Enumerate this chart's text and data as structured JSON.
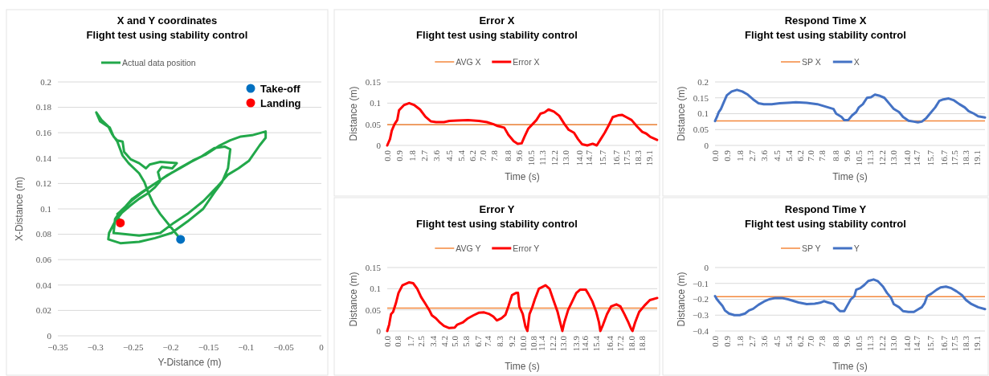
{
  "chart_data": [
    {
      "type": "line",
      "title": "X and Y coordinates",
      "subtitle": "Flight test using stability control",
      "xlabel": "Y-Distance (m)",
      "ylabel": "X-Distance (m)",
      "xlim": [
        -0.35,
        0
      ],
      "xticks": [
        {
          "value": -0.35,
          "label": "−0.35"
        },
        {
          "value": -0.3,
          "label": "−0.3"
        },
        {
          "value": -0.25,
          "label": "−0.25"
        },
        {
          "value": -0.2,
          "label": "−0.2"
        },
        {
          "value": -0.15,
          "label": "−0.15"
        },
        {
          "value": -0.1,
          "label": "−0.1"
        },
        {
          "value": -0.05,
          "label": "−0.05"
        },
        0
      ],
      "ylim": [
        0,
        0.2
      ],
      "yticks": [
        0,
        0.02,
        0.04,
        0.06,
        0.08,
        0.1,
        0.12,
        0.14,
        0.16,
        0.18,
        0.2
      ],
      "grid": "y",
      "legend": "top",
      "line_style": "solid",
      "series": [
        {
          "name": "Actual data position",
          "color": "#22a84a",
          "x": [
            -0.187,
            -0.199,
            -0.214,
            -0.223,
            -0.23,
            -0.235,
            -0.242,
            -0.256,
            -0.264,
            -0.271,
            -0.278,
            -0.283,
            -0.292,
            -0.299,
            -0.294,
            -0.281,
            -0.276,
            -0.271,
            -0.264,
            -0.262,
            -0.253,
            -0.242,
            -0.233,
            -0.228,
            -0.214,
            -0.192,
            -0.198,
            -0.212,
            -0.217,
            -0.214,
            -0.221,
            -0.231,
            -0.242,
            -0.253,
            -0.265,
            -0.274,
            -0.282,
            -0.283,
            -0.267,
            -0.242,
            -0.221,
            -0.199,
            -0.178,
            -0.157,
            -0.142,
            -0.132,
            -0.124,
            -0.121,
            -0.128,
            -0.142,
            -0.16,
            -0.173,
            -0.185,
            -0.206,
            -0.228,
            -0.24,
            -0.251,
            -0.26,
            -0.267,
            -0.274,
            -0.276,
            -0.26,
            -0.242,
            -0.214,
            -0.196,
            -0.178,
            -0.157,
            -0.139,
            -0.124,
            -0.11,
            -0.096,
            -0.082,
            -0.074,
            -0.074,
            -0.092,
            -0.107,
            -0.121,
            -0.135,
            -0.153,
            -0.171,
            -0.189,
            -0.208,
            -0.226,
            -0.239,
            -0.251,
            -0.26,
            -0.265,
            -0.271,
            -0.267
          ],
          "values": [
            0.076,
            0.085,
            0.096,
            0.104,
            0.113,
            0.121,
            0.128,
            0.136,
            0.142,
            0.153,
            0.159,
            0.165,
            0.17,
            0.176,
            0.169,
            0.164,
            0.157,
            0.154,
            0.153,
            0.145,
            0.139,
            0.136,
            0.132,
            0.135,
            0.137,
            0.136,
            0.132,
            0.133,
            0.129,
            0.122,
            0.117,
            0.112,
            0.108,
            0.103,
            0.097,
            0.09,
            0.081,
            0.076,
            0.073,
            0.074,
            0.077,
            0.081,
            0.09,
            0.1,
            0.113,
            0.121,
            0.132,
            0.147,
            0.149,
            0.148,
            0.141,
            0.137,
            0.133,
            0.126,
            0.117,
            0.112,
            0.107,
            0.102,
            0.098,
            0.092,
            0.081,
            0.08,
            0.079,
            0.081,
            0.089,
            0.096,
            0.106,
            0.117,
            0.127,
            0.132,
            0.138,
            0.15,
            0.156,
            0.161,
            0.158,
            0.157,
            0.154,
            0.15,
            0.143,
            0.138,
            0.132,
            0.125,
            0.118,
            0.113,
            0.108,
            0.102,
            0.099,
            0.096,
            0.089
          ]
        },
        {
          "type": "scatter",
          "name": "Take-off",
          "color": "#0070c0",
          "x": [
            -0.187
          ],
          "values": [
            0.076
          ]
        },
        {
          "type": "scatter",
          "name": "Landing",
          "color": "#ff0000",
          "x": [
            -0.267
          ],
          "values": [
            0.089
          ]
        }
      ]
    },
    {
      "type": "line",
      "title": "Error X",
      "subtitle": "Flight test using stability control",
      "xlabel": "Time (s)",
      "ylabel": "Distance (m)",
      "xlim": [
        0,
        19.7
      ],
      "xticks": [
        {
          "value": 0,
          "label": "0.0"
        },
        0.9,
        1.8,
        2.7,
        3.6,
        4.5,
        5.4,
        6.2,
        {
          "value": 7,
          "label": "7.0"
        },
        7.8,
        8.8,
        9.6,
        10.5,
        11.3,
        12.2,
        {
          "value": 13,
          "label": "13.0"
        },
        {
          "value": 14,
          "label": "14.0"
        },
        14.7,
        15.7,
        16.7,
        17.5,
        18.3,
        19.1
      ],
      "ylim": [
        0,
        0.15
      ],
      "yticks": [
        0,
        0.05,
        0.1,
        0.15
      ],
      "grid": "y",
      "legend": "top",
      "line_style": "solid",
      "ref_lines": [
        {
          "axis": "y",
          "value": 0.049,
          "label": "AVG X",
          "color": "#f4883c"
        }
      ],
      "x": [
        0,
        0.2,
        0.33,
        0.53,
        0.73,
        0.86,
        1.21,
        1.6,
        1.99,
        2.39,
        2.78,
        3.17,
        3.56,
        4.14,
        4.54,
        5.12,
        5.9,
        6.69,
        7.27,
        7.76,
        8.05,
        8.54,
        8.84,
        9.23,
        9.52,
        9.81,
        10.01,
        10.3,
        10.6,
        10.89,
        11.18,
        11.48,
        11.77,
        12.16,
        12.55,
        12.94,
        13.24,
        13.63,
        13.92,
        14.21,
        14.6,
        14.99,
        15.29,
        15.58,
        15.87,
        16.17,
        16.46,
        16.85,
        17.15,
        17.44,
        17.83,
        18.22,
        18.61,
        18.9,
        19.2,
        19.69
      ],
      "series": [
        {
          "name": "Error X",
          "color": "#ff0000",
          "values": [
            0,
            0.015,
            0.035,
            0.05,
            0.06,
            0.083,
            0.095,
            0.1,
            0.095,
            0.085,
            0.068,
            0.057,
            0.055,
            0.055,
            0.058,
            0.059,
            0.06,
            0.058,
            0.055,
            0.05,
            0.046,
            0.042,
            0.025,
            0.01,
            0.004,
            0.005,
            0.02,
            0.04,
            0.05,
            0.06,
            0.075,
            0.078,
            0.085,
            0.08,
            0.07,
            0.05,
            0.037,
            0.03,
            0.015,
            0.003,
            0,
            0.004,
            0,
            0.015,
            0.03,
            0.048,
            0.067,
            0.071,
            0.072,
            0.067,
            0.06,
            0.045,
            0.032,
            0.028,
            0.02,
            0.013
          ]
        }
      ]
    },
    {
      "type": "line",
      "title": "Respond Time X",
      "subtitle": "Flight test using stability control",
      "xlabel": "Time (s)",
      "ylabel": "Distance (m)",
      "xlim": [
        0,
        19.7
      ],
      "xticks": [
        {
          "value": 0,
          "label": "0.0"
        },
        0.9,
        1.8,
        2.7,
        3.6,
        4.5,
        5.4,
        6.2,
        {
          "value": 7,
          "label": "7.0"
        },
        7.8,
        8.8,
        9.6,
        10.5,
        11.3,
        12.2,
        {
          "value": 13,
          "label": "13.0"
        },
        {
          "value": 14,
          "label": "14.0"
        },
        14.7,
        15.7,
        16.7,
        17.5,
        18.3,
        19.1
      ],
      "ylim": [
        0,
        0.2
      ],
      "yticks": [
        0,
        0.05,
        0.1,
        0.15,
        0.2
      ],
      "grid": "y",
      "legend": "top",
      "line_style": "solid",
      "ref_lines": [
        {
          "axis": "y",
          "value": 0.077,
          "label": "SP X",
          "color": "#f4883c"
        }
      ],
      "x": [
        0,
        0.14,
        0.27,
        0.43,
        0.63,
        0.86,
        1.21,
        1.6,
        1.99,
        2.39,
        2.78,
        3.17,
        3.56,
        4.14,
        4.73,
        5.51,
        5.9,
        6.69,
        7.47,
        7.86,
        8.25,
        8.64,
        8.84,
        9.23,
        9.43,
        9.72,
        10.01,
        10.3,
        10.5,
        10.79,
        11.09,
        11.38,
        11.67,
        11.97,
        12.36,
        12.75,
        13.04,
        13.43,
        13.72,
        14.12,
        14.51,
        14.8,
        15.09,
        15.39,
        15.68,
        16.07,
        16.36,
        16.66,
        17.05,
        17.44,
        17.83,
        18.22,
        18.51,
        18.9,
        19.2,
        19.7
      ],
      "series": [
        {
          "name": "X",
          "color": "#4472c4",
          "values": [
            0.077,
            0.09,
            0.105,
            0.115,
            0.135,
            0.158,
            0.17,
            0.175,
            0.17,
            0.16,
            0.145,
            0.133,
            0.13,
            0.13,
            0.133,
            0.135,
            0.136,
            0.134,
            0.13,
            0.125,
            0.12,
            0.115,
            0.1,
            0.09,
            0.08,
            0.08,
            0.095,
            0.105,
            0.12,
            0.13,
            0.15,
            0.152,
            0.16,
            0.157,
            0.15,
            0.13,
            0.115,
            0.105,
            0.09,
            0.078,
            0.075,
            0.073,
            0.075,
            0.085,
            0.1,
            0.12,
            0.14,
            0.145,
            0.148,
            0.142,
            0.13,
            0.12,
            0.108,
            0.1,
            0.092,
            0.088
          ]
        }
      ]
    },
    {
      "type": "line",
      "title": "Error Y",
      "subtitle": "Flight test using stability control",
      "xlabel": "Time (s)",
      "ylabel": "Distance (m)",
      "xlim": [
        0,
        19.9
      ],
      "xticks": [
        {
          "value": 0,
          "label": "0.0"
        },
        0.8,
        1.7,
        2.5,
        3.4,
        4.2,
        {
          "value": 5,
          "label": "5.0"
        },
        5.8,
        6.7,
        7.4,
        8.3,
        9.2,
        {
          "value": 10,
          "label": "10.0"
        },
        10.8,
        11.4,
        12.2,
        {
          "value": 13,
          "label": "13.0"
        },
        13.9,
        14.6,
        15.4,
        16.4,
        17.2,
        {
          "value": 18,
          "label": "18.0"
        },
        18.8
      ],
      "ylim": [
        0,
        0.15
      ],
      "yticks": [
        0,
        0.05,
        0.1,
        0.15
      ],
      "grid": "y",
      "legend": "top",
      "line_style": "solid",
      "ref_lines": [
        {
          "axis": "y",
          "value": 0.054,
          "label": "AVG Y",
          "color": "#f4883c"
        }
      ],
      "x": [
        0,
        0.14,
        0.28,
        0.43,
        0.63,
        0.83,
        1.12,
        1.62,
        1.91,
        2.21,
        2.5,
        2.8,
        3.09,
        3.29,
        3.59,
        3.88,
        4.18,
        4.57,
        4.97,
        5.16,
        5.56,
        5.95,
        6.35,
        6.74,
        7.14,
        7.53,
        7.82,
        8.08,
        8.42,
        8.71,
        8.95,
        9.2,
        9.5,
        9.64,
        9.74,
        9.99,
        10.19,
        10.33,
        10.49,
        10.68,
        10.88,
        11.18,
        11.67,
        11.96,
        12.26,
        12.56,
        12.75,
        12.91,
        13.05,
        13.34,
        13.64,
        13.94,
        14.23,
        14.63,
        14.82,
        15.12,
        15.41,
        15.61,
        15.71,
        15.91,
        16.2,
        16.5,
        16.89,
        17.19,
        17.48,
        17.78,
        17.98,
        18.08,
        18.27,
        18.57,
        18.96,
        19.36,
        19.9
      ],
      "series": [
        {
          "name": "Error Y",
          "color": "#ff0000",
          "values": [
            0,
            0.015,
            0.04,
            0.045,
            0.065,
            0.09,
            0.108,
            0.115,
            0.113,
            0.1,
            0.08,
            0.065,
            0.05,
            0.037,
            0.03,
            0.02,
            0.012,
            0.007,
            0.008,
            0.015,
            0.02,
            0.03,
            0.037,
            0.043,
            0.044,
            0.04,
            0.034,
            0.025,
            0.03,
            0.038,
            0.06,
            0.085,
            0.09,
            0.09,
            0.058,
            0.04,
            0.01,
            0,
            0.04,
            0.055,
            0.075,
            0.1,
            0.108,
            0.1,
            0.072,
            0.045,
            0.02,
            0,
            0.02,
            0.05,
            0.07,
            0.09,
            0.098,
            0.098,
            0.088,
            0.07,
            0.045,
            0.02,
            0,
            0.015,
            0.04,
            0.058,
            0.063,
            0.058,
            0.04,
            0.02,
            0.005,
            0,
            0.02,
            0.045,
            0.06,
            0.073,
            0.078
          ]
        }
      ]
    },
    {
      "type": "line",
      "title": "Respond Time Y",
      "subtitle": "Flight test using stability control",
      "xlabel": "Time (s)",
      "ylabel": "Distance (m)",
      "xlim": [
        0,
        19.7
      ],
      "xticks": [
        {
          "value": 0,
          "label": "0.0"
        },
        0.9,
        1.8,
        2.7,
        3.6,
        4.5,
        5.4,
        6.2,
        {
          "value": 7,
          "label": "7.0"
        },
        7.8,
        8.8,
        9.6,
        10.5,
        11.3,
        12.2,
        {
          "value": 13,
          "label": "13.0"
        },
        {
          "value": 14,
          "label": "14.0"
        },
        14.7,
        15.7,
        16.7,
        17.5,
        18.3,
        19.1
      ],
      "ylim": [
        -0.4,
        0
      ],
      "yticks": [
        {
          "value": -0.4,
          "label": "−0.4"
        },
        {
          "value": -0.3,
          "label": "−0.3"
        },
        {
          "value": -0.2,
          "label": "−0.2"
        },
        {
          "value": -0.1,
          "label": "−0.1"
        },
        0
      ],
      "grid": "y",
      "legend": "top",
      "line_style": "solid",
      "ref_lines": [
        {
          "axis": "y",
          "value": -0.183,
          "label": "SP Y",
          "color": "#f4883c"
        }
      ],
      "x": [
        0,
        0.14,
        0.33,
        0.53,
        0.72,
        1.02,
        1.41,
        1.8,
        2.19,
        2.48,
        2.78,
        3.17,
        3.56,
        3.95,
        4.34,
        4.93,
        5.32,
        5.71,
        6.1,
        6.69,
        7.27,
        7.66,
        7.96,
        8.25,
        8.64,
        8.93,
        9.13,
        9.43,
        9.62,
        9.91,
        10.17,
        10.3,
        10.6,
        10.89,
        11.18,
        11.57,
        11.87,
        12.26,
        12.55,
        12.84,
        13.04,
        13.43,
        13.72,
        14.12,
        14.51,
        14.8,
        15.09,
        15.29,
        15.48,
        15.78,
        16.17,
        16.46,
        16.85,
        17.24,
        17.63,
        18.03,
        18.32,
        18.71,
        19.2,
        19.7
      ],
      "series": [
        {
          "name": "Y",
          "color": "#4472c4",
          "values": [
            -0.18,
            -0.2,
            -0.22,
            -0.24,
            -0.27,
            -0.29,
            -0.3,
            -0.3,
            -0.29,
            -0.27,
            -0.26,
            -0.235,
            -0.215,
            -0.2,
            -0.193,
            -0.193,
            -0.2,
            -0.21,
            -0.22,
            -0.23,
            -0.228,
            -0.222,
            -0.212,
            -0.22,
            -0.23,
            -0.26,
            -0.275,
            -0.275,
            -0.245,
            -0.2,
            -0.18,
            -0.14,
            -0.13,
            -0.11,
            -0.085,
            -0.075,
            -0.085,
            -0.12,
            -0.16,
            -0.19,
            -0.23,
            -0.25,
            -0.275,
            -0.28,
            -0.28,
            -0.265,
            -0.25,
            -0.225,
            -0.18,
            -0.165,
            -0.14,
            -0.125,
            -0.12,
            -0.13,
            -0.15,
            -0.175,
            -0.205,
            -0.23,
            -0.25,
            -0.262
          ]
        }
      ]
    }
  ]
}
